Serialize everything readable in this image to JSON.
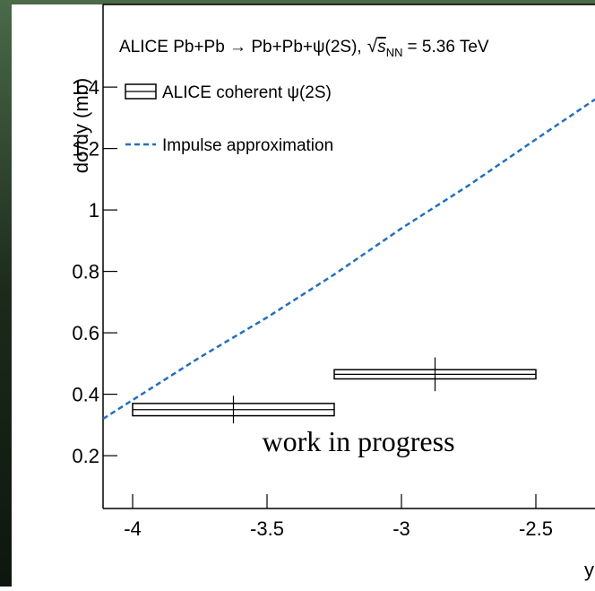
{
  "chart_data": {
    "type": "combo",
    "title": "ALICE Pb+Pb → Pb+Pb+ψ(2S),",
    "energy_symbol": "s",
    "energy_subscript": "NN",
    "energy_value": "= 5.36 TeV",
    "y_label": "dσ/dy (mb)",
    "x_label": "y",
    "annotation": "work in progress",
    "annotation_color": "#ff00ff",
    "xlim": [
      -4.11,
      -2.28
    ],
    "ylim": [
      0.028,
      1.669
    ],
    "xticks": [
      -4,
      -3.5,
      -3,
      -2.5
    ],
    "yticks": [
      0.2,
      0.4,
      0.6,
      0.8,
      1.0,
      1.2,
      1.4
    ],
    "series": [
      {
        "name": "ALICE coherent ψ(2S)",
        "type": "errorbox",
        "color": "#000000",
        "x": [
          -3.625,
          -2.875
        ],
        "x_low": [
          -4,
          -3.25
        ],
        "x_high": [
          -3.25,
          -2.5
        ],
        "values": [
          0.35,
          0.465
        ],
        "stat_err": [
          0.045,
          0.055
        ],
        "sys_err": [
          0.02,
          0.015
        ]
      },
      {
        "name": "Impulse approximation",
        "type": "line",
        "color": "#1f6fc5",
        "dashed": true,
        "x": [
          -4.11,
          -3.75,
          -3.5,
          -3.25,
          -3,
          -2.75,
          -2.5,
          -2.28
        ],
        "values": [
          0.32,
          0.52,
          0.65,
          0.79,
          0.94,
          1.08,
          1.23,
          1.36
        ]
      }
    ]
  }
}
